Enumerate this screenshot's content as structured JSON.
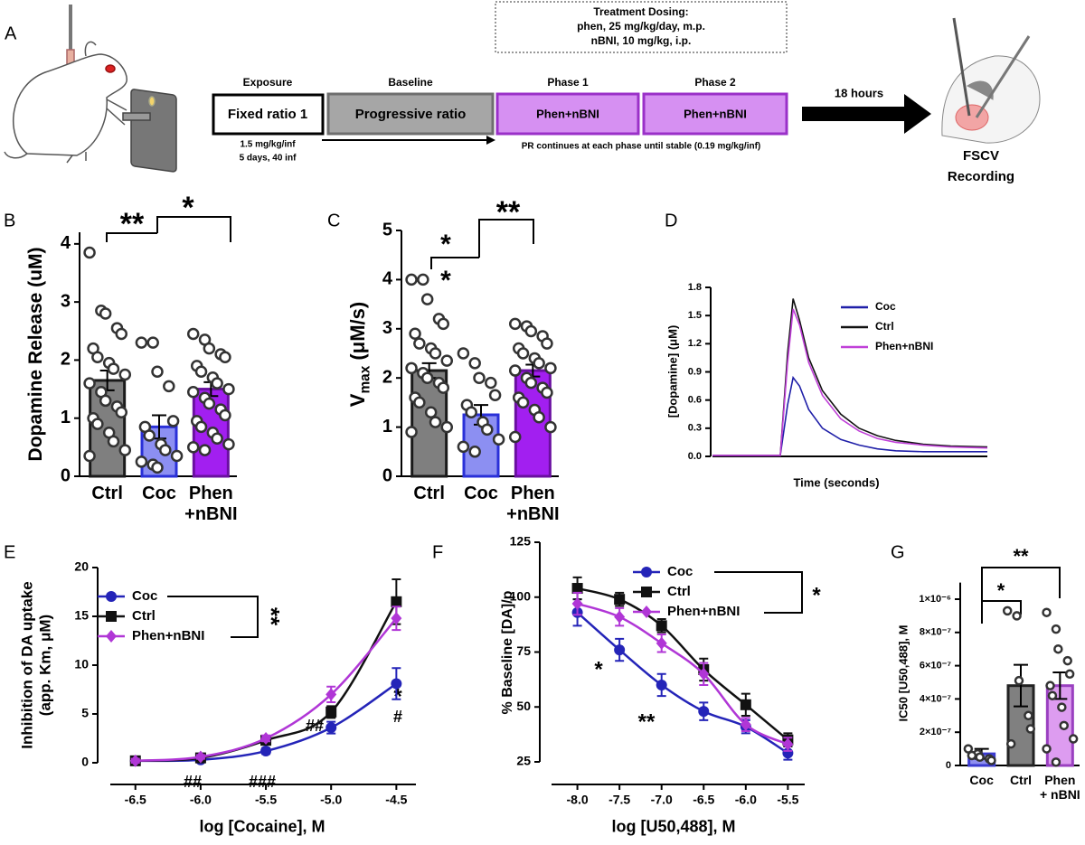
{
  "schematic": {
    "panel": "A",
    "treatment": {
      "title": "Treatment Dosing:",
      "lines": [
        "phen, 25 mg/kg/day, m.p.",
        "nBNI, 10 mg/kg, i.p."
      ]
    },
    "stages": [
      {
        "label": "Exposure",
        "box": "Fixed ratio 1"
      },
      {
        "label": "Baseline",
        "box": "Progressive ratio"
      },
      {
        "label": "Phase 1",
        "box": "Phen+nBNI"
      },
      {
        "label": "Phase 2",
        "box": "Phen+nBNI"
      }
    ],
    "exposure_notes": [
      "1.5 mg/kg/inf",
      "5 days, 40 inf"
    ],
    "pr_note": "PR continues at each phase until stable (0.19 mg/kg/inf)",
    "delay": "18 hours",
    "endpoint": [
      "FSCV",
      "Recording"
    ]
  },
  "chart_data": [
    {
      "panel": "B",
      "type": "bar",
      "ylabel": "Dopamine Release (uM)",
      "categories": [
        "Ctrl",
        "Coc",
        "Phen\n+nBNI"
      ],
      "values": [
        1.65,
        0.85,
        1.5
      ],
      "errors": [
        0.17,
        0.2,
        0.12
      ],
      "colors": [
        "#7f7f7f",
        "#8c8ff2",
        "#a21ff0"
      ],
      "edge_colors": [
        "#1a1a1a",
        "#2a30d8",
        "#6a0fa0"
      ],
      "points": [
        [
          3.85,
          2.85,
          2.8,
          2.55,
          2.45,
          2.2,
          2.05,
          1.95,
          1.85,
          1.75,
          1.6,
          1.45,
          1.3,
          1.2,
          1.1,
          1.0,
          0.9,
          0.75,
          0.6,
          0.45,
          0.35
        ],
        [
          2.3,
          2.3,
          1.8,
          1.55,
          0.95,
          0.85,
          0.7,
          0.55,
          0.45,
          0.35,
          0.25,
          0.2,
          0.15
        ],
        [
          2.45,
          2.35,
          2.2,
          2.1,
          2.05,
          1.9,
          1.8,
          1.7,
          1.6,
          1.5,
          1.45,
          1.35,
          1.25,
          1.15,
          1.05,
          0.95,
          0.85,
          0.75,
          0.65,
          0.55,
          0.5,
          0.45
        ]
      ],
      "ylim": [
        0,
        4.2
      ],
      "yticks": [
        0,
        1,
        2,
        3,
        4
      ],
      "annotations": [
        "**",
        "*"
      ]
    },
    {
      "panel": "C",
      "type": "bar",
      "ylabel": {
        "symbol": "V",
        "subscript": "max",
        "unit": " (μM/s)"
      },
      "categories": [
        "Ctrl",
        "Coc",
        "Phen\n+nBNI"
      ],
      "values": [
        2.15,
        1.25,
        2.15
      ],
      "errors": [
        0.15,
        0.2,
        0.12
      ],
      "colors": [
        "#7f7f7f",
        "#8c8ff2",
        "#a21ff0"
      ],
      "edge_colors": [
        "#1a1a1a",
        "#2a30d8",
        "#6a0fa0"
      ],
      "points": [
        [
          4.0,
          4.0,
          3.6,
          3.2,
          3.1,
          2.9,
          2.7,
          2.6,
          2.5,
          2.35,
          2.2,
          2.1,
          2.0,
          1.9,
          1.8,
          1.6,
          1.5,
          1.3,
          1.1,
          1.0,
          0.9
        ],
        [
          2.5,
          2.3,
          2.0,
          1.9,
          1.65,
          1.45,
          1.3,
          1.1,
          0.95,
          0.75,
          0.6,
          0.5
        ],
        [
          3.1,
          3.05,
          2.95,
          2.85,
          2.7,
          2.6,
          2.5,
          2.4,
          2.3,
          2.2,
          2.15,
          2.0,
          1.9,
          1.8,
          1.7,
          1.6,
          1.5,
          1.35,
          1.2,
          1.0,
          0.8
        ]
      ],
      "ylim": [
        0,
        5
      ],
      "yticks": [
        0,
        1,
        2,
        3,
        4,
        5
      ],
      "annotations": [
        "*",
        "*",
        "**"
      ]
    },
    {
      "panel": "D",
      "type": "line",
      "ylabel": "[Dopamine] (μM)",
      "xlabel": "Time (seconds)",
      "x": [
        0,
        2,
        4,
        6,
        7.4,
        8.2,
        8.8,
        9.5,
        10.5,
        12,
        14,
        16,
        18,
        20,
        23,
        26,
        30
      ],
      "xlim": [
        0,
        30
      ],
      "ylim": [
        0,
        1.8
      ],
      "yticks": [
        {
          "value": 0,
          "label": "0.0"
        },
        0.3,
        0.6,
        0.9,
        1.2,
        1.5,
        1.8
      ],
      "legend": true,
      "series": [
        {
          "name": "Coc",
          "color": "#1f1fa8",
          "values": [
            0.01,
            0.01,
            0.01,
            0.01,
            0.01,
            0.55,
            0.84,
            0.75,
            0.5,
            0.3,
            0.18,
            0.12,
            0.08,
            0.06,
            0.05,
            0.05,
            0.05
          ]
        },
        {
          "name": "Ctrl",
          "color": "#111111",
          "values": [
            0.01,
            0.01,
            0.01,
            0.01,
            0.01,
            1.1,
            1.68,
            1.45,
            1.05,
            0.7,
            0.45,
            0.3,
            0.22,
            0.17,
            0.13,
            0.11,
            0.1
          ]
        },
        {
          "name": "Phen+nBNI",
          "color": "#c040d8",
          "values": [
            0.01,
            0.01,
            0.01,
            0.01,
            0.01,
            1.0,
            1.57,
            1.4,
            1.0,
            0.65,
            0.4,
            0.27,
            0.19,
            0.15,
            0.12,
            0.1,
            0.09
          ]
        }
      ]
    },
    {
      "panel": "E",
      "type": "line",
      "ylabel": "Inhibition of DA uptake\n(app. Km, μM)",
      "xlabel": "log [Cocaine], M",
      "x": [
        -6.5,
        -6,
        -5.5,
        -5,
        -4.5
      ],
      "xlim": [
        -6.72,
        -4.35
      ],
      "xticks": [
        -6.5,
        {
          "value": -6,
          "label": "-6.0"
        },
        -5.5,
        {
          "value": -5,
          "label": "-5.0"
        },
        -4.5
      ],
      "ylim": [
        0,
        20
      ],
      "yticks": [
        0,
        5,
        10,
        15,
        20
      ],
      "legend": true,
      "series": [
        {
          "name": "Coc",
          "color": "#2424b8",
          "marker": "circle",
          "values": [
            0.2,
            0.3,
            1.2,
            3.6,
            8.1
          ],
          "errors": [
            0.2,
            0.2,
            0.3,
            0.6,
            1.6
          ]
        },
        {
          "name": "Ctrl",
          "color": "#111111",
          "marker": "square",
          "values": [
            0.2,
            0.5,
            2.3,
            5.2,
            16.5
          ],
          "errors": [
            0.2,
            0.2,
            0.3,
            0.6,
            2.3
          ]
        },
        {
          "name": "Phen+nBNI",
          "color": "#b036d6",
          "marker": "diamond",
          "values": [
            0.2,
            0.6,
            2.5,
            7.0,
            14.8
          ],
          "errors": [
            0.2,
            0.2,
            0.3,
            0.8,
            1.2
          ]
        }
      ],
      "annotations": [
        "**",
        "##",
        "###",
        "##",
        "*",
        "#"
      ]
    },
    {
      "panel": "F",
      "type": "line",
      "ylabel": "% Baseline [DA]/p",
      "xlabel": "log [U50,488], M",
      "x": [
        -8,
        -7.5,
        -7,
        -6.5,
        -6,
        -5.5
      ],
      "xlim": [
        -8.35,
        -5.3
      ],
      "xticks": [
        {
          "value": -8,
          "label": "-8.0"
        },
        -7.5,
        {
          "value": -7,
          "label": "-7.0"
        },
        -6.5,
        {
          "value": -6,
          "label": "-6.0"
        },
        -5.5
      ],
      "ylim": [
        25,
        125
      ],
      "yticks": [
        25,
        50,
        75,
        100,
        125
      ],
      "legend": true,
      "series": [
        {
          "name": "Coc",
          "color": "#2424b8",
          "marker": "circle",
          "values": [
            93,
            76,
            60,
            48,
            41,
            29
          ],
          "errors": [
            6,
            5,
            5,
            4,
            3,
            3
          ]
        },
        {
          "name": "Ctrl",
          "color": "#111111",
          "marker": "square",
          "values": [
            104,
            99,
            87,
            67,
            51,
            35
          ],
          "errors": [
            5,
            3,
            3,
            5,
            5,
            3
          ]
        },
        {
          "name": "Phen+nBNI",
          "color": "#b036d6",
          "marker": "diamond",
          "values": [
            97,
            91,
            79,
            65,
            42,
            33
          ],
          "errors": [
            5,
            4,
            4,
            5,
            3,
            3
          ]
        }
      ],
      "annotations": [
        "*",
        "*",
        "**"
      ]
    },
    {
      "panel": "G",
      "type": "bar",
      "ylabel": "IC50 [U50,488], M",
      "categories": [
        "Coc",
        "Ctrl",
        "Phen\n+ nBNI"
      ],
      "values": [
        7e-08,
        4.8e-07,
        4.8e-07
      ],
      "errors": [
        3e-08,
        1.25e-07,
        8e-08
      ],
      "colors": [
        "#8f8ff0",
        "#808080",
        "#dd9cf0"
      ],
      "edge_colors": [
        "#3a3ad0",
        "#222222",
        "#9a40c0"
      ],
      "points": [
        [
          1e-07,
          7e-08,
          5e-08,
          4e-08,
          3e-08,
          6e-08
        ],
        [
          9.3e-07,
          9e-07,
          5.1e-07,
          3e-07,
          2.2e-07,
          1.3e-07
        ],
        [
          9.2e-07,
          8.2e-07,
          7e-07,
          6.3e-07,
          5.5e-07,
          4.8e-07,
          4.2e-07,
          3.5e-07,
          2.4e-07,
          1.6e-07,
          1e-07,
          2e-08
        ]
      ],
      "ylim": [
        0,
        1.1e-06
      ],
      "yticks": [
        0,
        {
          "value": 2e-07,
          "label": "2×10⁻⁷"
        },
        {
          "value": 4e-07,
          "label": "4×10⁻⁷"
        },
        {
          "value": 6e-07,
          "label": "6×10⁻⁷"
        },
        {
          "value": 8e-07,
          "label": "8×10⁻⁷"
        },
        {
          "value": 1e-06,
          "label": "1×10⁻⁶"
        }
      ],
      "annotations": [
        "*",
        "**"
      ]
    }
  ]
}
